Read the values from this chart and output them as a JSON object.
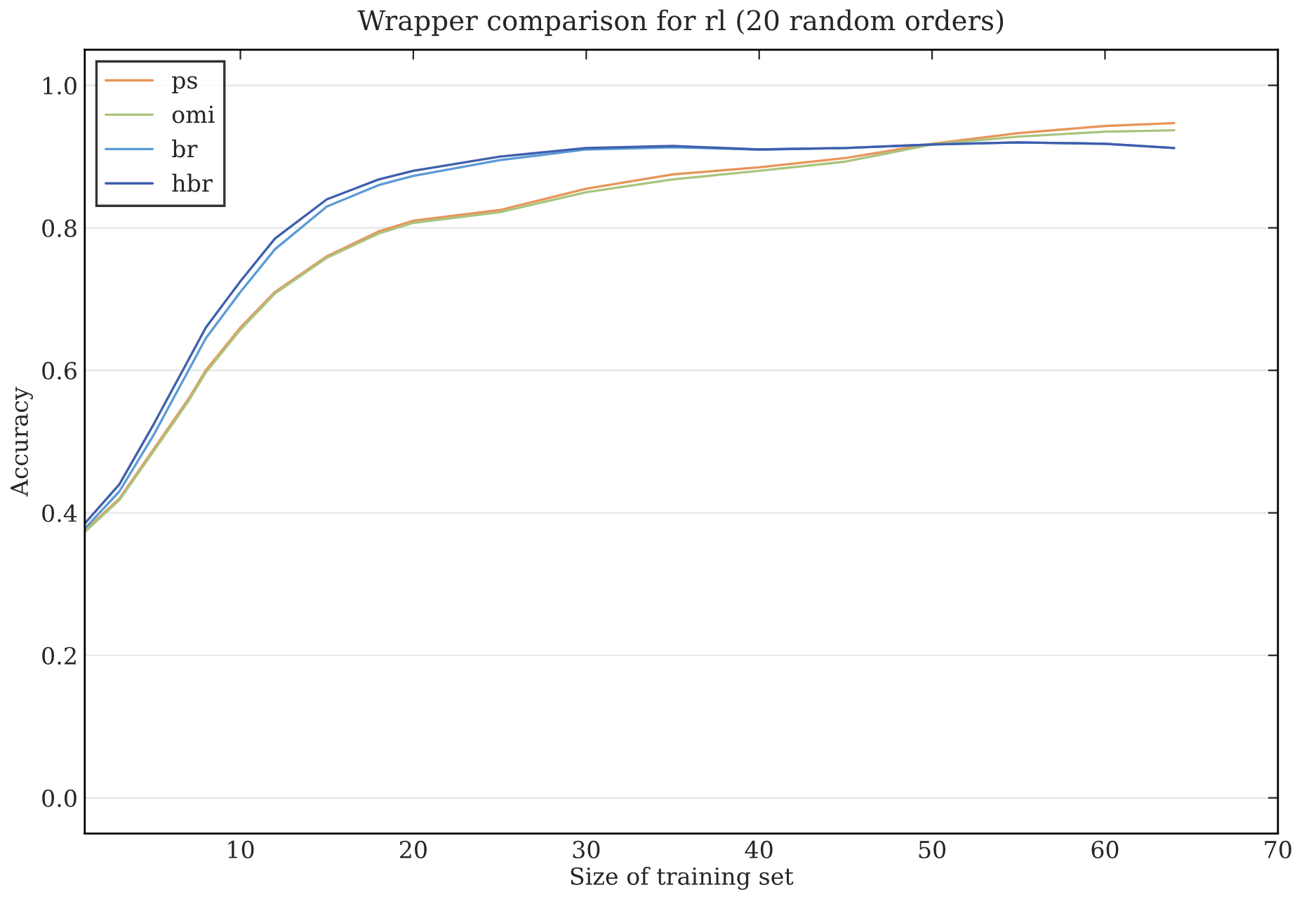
{
  "chart_data": {
    "type": "line",
    "title": "Wrapper comparison for rl (20 random orders)",
    "xlabel": "Size of training set",
    "ylabel": "Accuracy",
    "x": [
      1,
      3,
      5,
      7,
      8,
      10,
      12,
      15,
      18,
      20,
      25,
      30,
      35,
      40,
      45,
      50,
      55,
      60,
      64
    ],
    "series": [
      {
        "name": "ps",
        "color": "#e8955a",
        "values": [
          0.375,
          0.42,
          0.49,
          0.56,
          0.6,
          0.66,
          0.71,
          0.76,
          0.795,
          0.81,
          0.825,
          0.855,
          0.875,
          0.885,
          0.898,
          0.918,
          0.933,
          0.943,
          0.947
        ]
      },
      {
        "name": "omi",
        "color": "#a9c47f",
        "values": [
          0.373,
          0.418,
          0.487,
          0.557,
          0.597,
          0.657,
          0.708,
          0.758,
          0.792,
          0.807,
          0.822,
          0.85,
          0.868,
          0.88,
          0.893,
          0.917,
          0.928,
          0.935,
          0.937
        ]
      },
      {
        "name": "br",
        "color": "#5b9bd5",
        "values": [
          0.378,
          0.43,
          0.51,
          0.6,
          0.645,
          0.71,
          0.77,
          0.83,
          0.86,
          0.873,
          0.895,
          0.91,
          0.913,
          0.91,
          0.912,
          0.917,
          0.92,
          0.918,
          0.912
        ]
      },
      {
        "name": "hbr",
        "color": "#3f5fad",
        "values": [
          0.385,
          0.44,
          0.525,
          0.615,
          0.66,
          0.725,
          0.785,
          0.84,
          0.868,
          0.88,
          0.9,
          0.912,
          0.915,
          0.91,
          0.912,
          0.917,
          0.92,
          0.918,
          0.912
        ]
      }
    ],
    "xlim": [
      1,
      70
    ],
    "xticks": [
      10,
      20,
      30,
      40,
      50,
      60,
      70
    ],
    "ylim": [
      -0.05,
      1.05
    ],
    "yticks": [
      {
        "value": 0.0,
        "label": "0.0"
      },
      {
        "value": 0.2,
        "label": "0.2"
      },
      {
        "value": 0.4,
        "label": "0.4"
      },
      {
        "value": 0.6,
        "label": "0.6"
      },
      {
        "value": 0.8,
        "label": "0.8"
      },
      {
        "value": 1.0,
        "label": "1.0"
      }
    ],
    "grid": "y",
    "legend": "top left",
    "marker": "none",
    "line_style": "solid"
  }
}
